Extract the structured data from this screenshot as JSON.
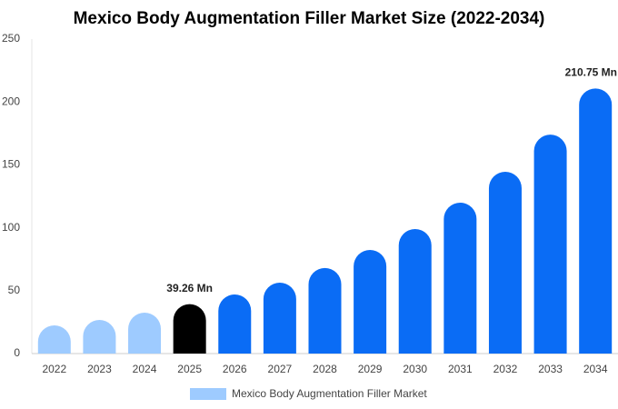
{
  "chart_data": {
    "type": "bar",
    "title": "Mexico Body Augmentation Filler Market Size (2022-2034)",
    "categories": [
      "2022",
      "2023",
      "2024",
      "2025",
      "2026",
      "2027",
      "2028",
      "2029",
      "2030",
      "2031",
      "2032",
      "2033",
      "2034"
    ],
    "series": [
      {
        "name": "Mexico Body Augmentation Filler Market",
        "color": "#9ecbff",
        "colors": [
          "#9ecbff",
          "#9ecbff",
          "#9ecbff",
          "#000000",
          "#0a6cf5",
          "#0a6cf5",
          "#0a6cf5",
          "#0a6cf5",
          "#0a6cf5",
          "#0a6cf5",
          "#0a6cf5",
          "#0a6cf5",
          "#0a6cf5"
        ],
        "values": [
          22.4,
          26.7,
          32.5,
          39.26,
          47,
          56.4,
          68,
          82.4,
          99,
          120,
          144.5,
          174,
          210.75
        ],
        "value_labels": [
          null,
          null,
          null,
          "39.26 Mn",
          null,
          null,
          null,
          null,
          null,
          null,
          null,
          null,
          "210.75 Mn"
        ]
      }
    ],
    "ylim": [
      0,
      250
    ],
    "yticks": [
      0,
      50,
      100,
      150,
      200,
      250
    ],
    "grid": false
  }
}
